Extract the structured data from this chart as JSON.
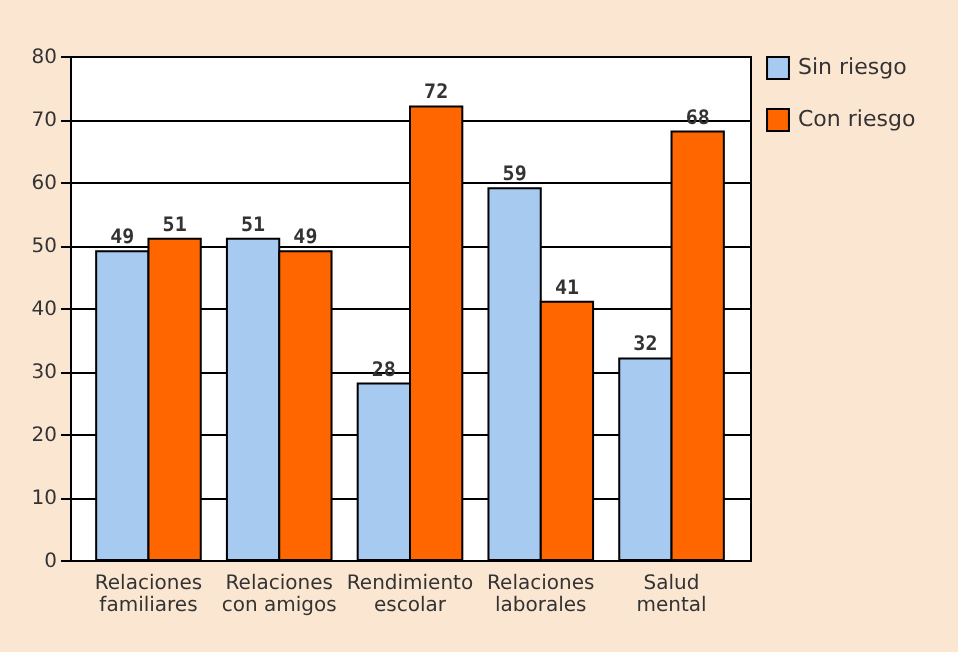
{
  "chart_data": {
    "type": "bar",
    "categories": [
      "Relaciones familiares",
      "Relaciones con amigos",
      "Rendimiento escolar",
      "Relaciones laborales",
      "Salud mental"
    ],
    "series": [
      {
        "name": "Sin riesgo",
        "color": "#a6caf0",
        "values": [
          49,
          51,
          28,
          59,
          32
        ]
      },
      {
        "name": "Con riesgo",
        "color": "#ff6600",
        "values": [
          51,
          49,
          72,
          41,
          68
        ]
      }
    ],
    "ylim": [
      0,
      80
    ],
    "yticks": [
      0,
      10,
      20,
      30,
      40,
      50,
      60,
      70,
      80
    ],
    "grid": "y",
    "legend": "right",
    "data_labels": true
  }
}
